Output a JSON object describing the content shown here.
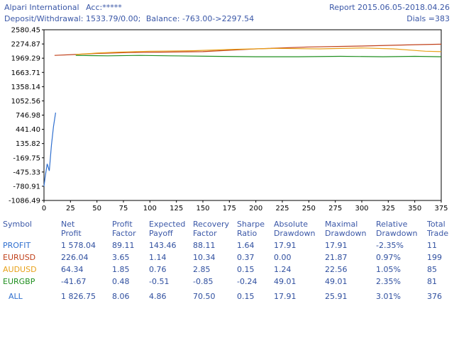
{
  "header": {
    "broker": "Alpari International",
    "account": "Acc:*****",
    "deposit": "Deposit/Withdrawal: 1533.79/0.00;",
    "balance": "Balance: -763.00->2297.54",
    "report": "Report 2015.06.05-2018.04.26",
    "dials": "Dials =383"
  },
  "colors": {
    "PROFIT": "#2f6fcf",
    "EURUSD": "#c0401a",
    "AUDUSD": "#e8a11a",
    "EURGBP": "#1f8f1f",
    "ALL": "#2f6fcf"
  },
  "chart_data": {
    "type": "line",
    "xlim": [
      0,
      375
    ],
    "ylim": [
      -1086.49,
      2580.45
    ],
    "x_ticks": [
      "0",
      "25",
      "50",
      "75",
      "100",
      "125",
      "150",
      "175",
      "200",
      "225",
      "250",
      "275",
      "300",
      "325",
      "350",
      "375"
    ],
    "y_ticks": [
      "2580.45",
      "2274.87",
      "1969.29",
      "1663.71",
      "1358.14",
      "1052.56",
      "746.98",
      "441.40",
      "135.82",
      "-169.75",
      "-475.33",
      "-780.91",
      "-1086.49"
    ],
    "grid": false,
    "series": [
      {
        "name": "PROFIT",
        "x": [
          0,
          1,
          3,
          5,
          7,
          9,
          11
        ],
        "y": [
          -780,
          -600,
          -300,
          -450,
          100,
          500,
          800
        ]
      },
      {
        "name": "EURUSD",
        "x": [
          10,
          30,
          50,
          80,
          110,
          150,
          200,
          250,
          300,
          350,
          375
        ],
        "y": [
          2030,
          2050,
          2070,
          2090,
          2100,
          2110,
          2170,
          2210,
          2230,
          2260,
          2270
        ]
      },
      {
        "name": "AUDUSD",
        "x": [
          30,
          50,
          70,
          100,
          140,
          180,
          220,
          260,
          300,
          330,
          360,
          375
        ],
        "y": [
          2050,
          2080,
          2100,
          2120,
          2130,
          2160,
          2180,
          2170,
          2190,
          2170,
          2120,
          2110
        ]
      },
      {
        "name": "EURGBP",
        "x": [
          30,
          60,
          90,
          120,
          160,
          200,
          240,
          280,
          320,
          350,
          375
        ],
        "y": [
          2030,
          2020,
          2030,
          2020,
          2010,
          2000,
          2000,
          2010,
          2000,
          2010,
          2000
        ]
      }
    ]
  },
  "table": {
    "headers": [
      [
        "Symbol",
        ""
      ],
      [
        "Net",
        "Profit"
      ],
      [
        "Profit",
        "Factor"
      ],
      [
        "Expected",
        "Payoff"
      ],
      [
        "Recovery",
        "Factor"
      ],
      [
        "Sharpe",
        "Ratio"
      ],
      [
        "Absolute",
        "Drawdown"
      ],
      [
        "Maximal",
        "Drawdown"
      ],
      [
        "Relative",
        "Drawdown"
      ],
      [
        "Total",
        "Trade"
      ]
    ],
    "rows": [
      {
        "symbol": "PROFIT",
        "cells": [
          "1 578.04",
          "89.11",
          "143.46",
          "88.11",
          "1.64",
          "17.91",
          "17.91",
          "-2.35%",
          "11"
        ]
      },
      {
        "symbol": "EURUSD",
        "cells": [
          "226.04",
          "3.65",
          "1.14",
          "10.34",
          "0.37",
          "0.00",
          "21.87",
          "0.97%",
          "199"
        ]
      },
      {
        "symbol": "AUDUSD",
        "cells": [
          "64.34",
          "1.85",
          "0.76",
          "2.85",
          "0.15",
          "1.24",
          "22.56",
          "1.05%",
          "85"
        ]
      },
      {
        "symbol": "EURGBP",
        "cells": [
          "-41.67",
          "0.48",
          "-0.51",
          "-0.85",
          "-0.24",
          "49.01",
          "49.01",
          "2.35%",
          "81"
        ]
      }
    ],
    "all": {
      "symbol": "ALL",
      "cells": [
        "1 826.75",
        "8.06",
        "4.86",
        "70.50",
        "0.15",
        "17.91",
        "25.91",
        "3.01%",
        "376"
      ]
    }
  }
}
